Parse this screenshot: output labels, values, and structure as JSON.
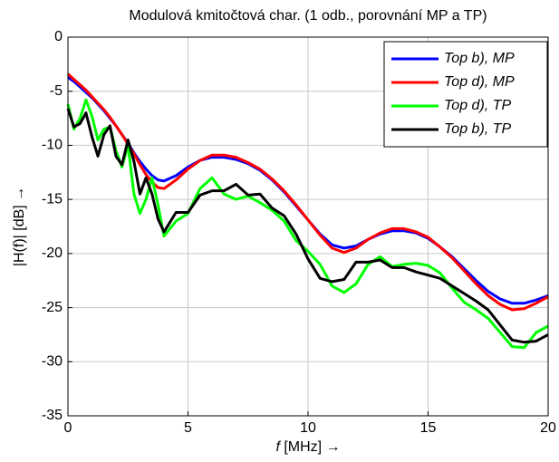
{
  "chart_data": {
    "type": "line",
    "title": "Modulová kmitočtová char. (1 odb., porovnání MP a TP)",
    "xlabel_var": "f",
    "xlabel_unit": "[MHz] →",
    "ylabel": "|H(f)| [dB] →",
    "xlim": [
      0,
      20
    ],
    "ylim": [
      -35,
      0
    ],
    "xticks": [
      0,
      5,
      10,
      15,
      20
    ],
    "yticks": [
      0,
      -5,
      -10,
      -15,
      -20,
      -25,
      -30,
      -35
    ],
    "grid": true,
    "legend": "upper right",
    "x": [
      0,
      0.25,
      0.5,
      0.75,
      1,
      1.25,
      1.5,
      1.75,
      2,
      2.25,
      2.5,
      2.75,
      3,
      3.25,
      3.5,
      3.75,
      4,
      4.5,
      5,
      5.5,
      6,
      6.5,
      7,
      7.5,
      8,
      8.5,
      9,
      9.5,
      10,
      10.5,
      11,
      11.5,
      12,
      12.5,
      13,
      13.5,
      14,
      14.5,
      15,
      15.5,
      16,
      16.5,
      17,
      17.5,
      18,
      18.5,
      19,
      19.5,
      20
    ],
    "series": [
      {
        "name": "Top b), MP",
        "color": "#0000ff",
        "values": [
          -3.7,
          -4.1,
          -4.6,
          -5.1,
          -5.6,
          -6.2,
          -6.8,
          -7.5,
          -8.2,
          -9.0,
          -9.8,
          -10.7,
          -11.5,
          -12.2,
          -12.8,
          -13.2,
          -13.3,
          -12.8,
          -12.0,
          -11.4,
          -11.1,
          -11.1,
          -11.3,
          -11.7,
          -12.3,
          -13.2,
          -14.3,
          -15.6,
          -16.9,
          -18.2,
          -19.2,
          -19.5,
          -19.3,
          -18.7,
          -18.2,
          -17.9,
          -17.9,
          -18.1,
          -18.6,
          -19.4,
          -20.3,
          -21.4,
          -22.5,
          -23.5,
          -24.2,
          -24.6,
          -24.6,
          -24.3,
          -23.9
        ]
      },
      {
        "name": "Top d), MP",
        "color": "#ff0000",
        "values": [
          -3.4,
          -3.9,
          -4.4,
          -4.9,
          -5.5,
          -6.1,
          -6.7,
          -7.4,
          -8.2,
          -9.0,
          -9.9,
          -10.8,
          -11.8,
          -12.7,
          -13.4,
          -13.9,
          -14.0,
          -13.2,
          -12.2,
          -11.4,
          -10.9,
          -10.9,
          -11.1,
          -11.6,
          -12.2,
          -13.1,
          -14.2,
          -15.5,
          -16.9,
          -18.3,
          -19.5,
          -19.9,
          -19.5,
          -18.7,
          -18.1,
          -17.7,
          -17.7,
          -18.0,
          -18.5,
          -19.4,
          -20.4,
          -21.6,
          -22.8,
          -23.9,
          -24.7,
          -25.2,
          -25.1,
          -24.6,
          -24.0
        ]
      },
      {
        "name": "Top d), TP",
        "color": "#00ff00",
        "values": [
          -6.2,
          -8.5,
          -7.5,
          -5.8,
          -7.3,
          -9.5,
          -8.5,
          -8.3,
          -10.5,
          -12.0,
          -10.0,
          -14.5,
          -16.3,
          -15.0,
          -13.0,
          -15.5,
          -18.4,
          -17.0,
          -16.3,
          -14.0,
          -13.0,
          -14.5,
          -15.0,
          -14.7,
          -15.3,
          -16.0,
          -17.0,
          -18.8,
          -19.8,
          -21.0,
          -23.0,
          -23.6,
          -22.8,
          -21.0,
          -20.3,
          -21.2,
          -21.0,
          -20.9,
          -21.1,
          -21.8,
          -23.2,
          -24.5,
          -25.2,
          -26.0,
          -27.3,
          -28.6,
          -28.7,
          -27.3,
          -26.7
        ]
      },
      {
        "name": "Top b), TP",
        "color": "#000000",
        "values": [
          -6.6,
          -8.3,
          -8.0,
          -7.0,
          -9.2,
          -11.0,
          -9.0,
          -8.2,
          -11.0,
          -11.8,
          -9.5,
          -11.5,
          -14.5,
          -13.0,
          -14.5,
          -16.8,
          -18.0,
          -16.2,
          -16.2,
          -14.6,
          -14.2,
          -14.2,
          -13.6,
          -14.6,
          -14.5,
          -15.8,
          -16.5,
          -18.2,
          -20.5,
          -22.3,
          -22.6,
          -22.4,
          -20.8,
          -20.8,
          -20.6,
          -21.3,
          -21.3,
          -21.7,
          -22.0,
          -22.3,
          -23.0,
          -23.7,
          -24.4,
          -25.2,
          -26.6,
          -28.0,
          -28.2,
          -28.1,
          -27.5
        ]
      }
    ]
  }
}
